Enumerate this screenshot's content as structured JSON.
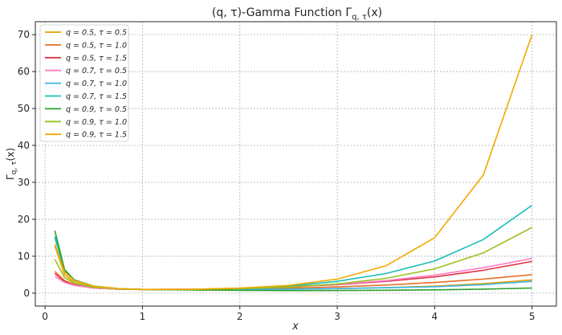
{
  "chart_data": {
    "type": "line",
    "title": "(q, τ)-Gamma Function Γq,τ(x)",
    "title_parts": {
      "main": "(q, τ)-Gamma Function Γ",
      "sub": "q, τ",
      "tail": "(x)"
    },
    "xlabel": "x",
    "ylabel_parts": {
      "main": "Γ",
      "sub": "q, τ",
      "tail": "(x)"
    },
    "xlim": [
      -0.1,
      5.25
    ],
    "ylim": [
      -3.5,
      73.5
    ],
    "xticks": [
      "0",
      "1",
      "2",
      "3",
      "4",
      "5"
    ],
    "yticks": [
      "0",
      "10",
      "20",
      "30",
      "40",
      "50",
      "60",
      "70"
    ],
    "grid": true,
    "legend_position": "top-left",
    "x": [
      0.1,
      0.2,
      0.3,
      0.5,
      0.75,
      1.0,
      1.5,
      2.0,
      2.5,
      3.0,
      3.5,
      4.0,
      4.5,
      5.0
    ],
    "series": [
      {
        "name": "q = 0.5,  τ = 0.5",
        "color": "#E69F00",
        "values": [
          12.8,
          5.0,
          2.9,
          1.6,
          1.15,
          1.0,
          0.95,
          1.0,
          1.1,
          1.25,
          1.5,
          1.9,
          2.6,
          3.6
        ]
      },
      {
        "name": "q = 0.5,  τ = 1.0",
        "color": "#E8702A",
        "values": [
          5.9,
          3.4,
          2.3,
          1.4,
          1.1,
          1.0,
          1.0,
          1.1,
          1.35,
          1.7,
          2.2,
          2.9,
          3.8,
          5.0
        ]
      },
      {
        "name": "q = 0.5,  τ = 1.5",
        "color": "#DC3545",
        "values": [
          5.3,
          3.2,
          2.2,
          1.4,
          1.1,
          1.0,
          1.05,
          1.3,
          1.7,
          2.3,
          3.2,
          4.4,
          6.2,
          8.6
        ]
      },
      {
        "name": "q = 0.7,  τ = 0.5",
        "color": "#FF7FC6",
        "values": [
          4.5,
          2.9,
          2.1,
          1.35,
          1.08,
          1.0,
          1.05,
          1.3,
          1.75,
          2.4,
          3.4,
          4.9,
          6.9,
          9.4
        ]
      },
      {
        "name": "q = 0.7,  τ = 1.0",
        "color": "#3BB5E8",
        "values": [
          15.4,
          6.0,
          3.4,
          1.8,
          1.2,
          1.0,
          0.95,
          1.0,
          1.1,
          1.25,
          1.45,
          1.75,
          2.3,
          3.2
        ]
      },
      {
        "name": "q = 0.7,  τ = 1.5",
        "color": "#17BEBB",
        "values": [
          15.0,
          6.2,
          3.5,
          1.9,
          1.25,
          1.0,
          1.0,
          1.3,
          1.9,
          3.2,
          5.3,
          8.7,
          14.5,
          23.8
        ]
      },
      {
        "name": "q = 0.9,  τ = 0.5",
        "color": "#2CA02C",
        "values": [
          16.9,
          6.4,
          3.6,
          1.9,
          1.2,
          1.0,
          0.85,
          0.75,
          0.7,
          0.72,
          0.78,
          0.9,
          1.1,
          1.4
        ]
      },
      {
        "name": "q = 0.9,  τ = 1.0",
        "color": "#9AC11E",
        "values": [
          9.2,
          4.2,
          2.7,
          1.6,
          1.15,
          1.0,
          1.0,
          1.2,
          1.65,
          2.5,
          4.0,
          6.6,
          10.9,
          17.8
        ]
      },
      {
        "name": "q = 0.9,  τ = 1.5",
        "color": "#F2A900",
        "values": [
          13.2,
          5.7,
          3.4,
          1.9,
          1.25,
          1.0,
          1.05,
          1.4,
          2.1,
          3.8,
          7.4,
          15.0,
          32.0,
          70.0
        ]
      }
    ]
  }
}
